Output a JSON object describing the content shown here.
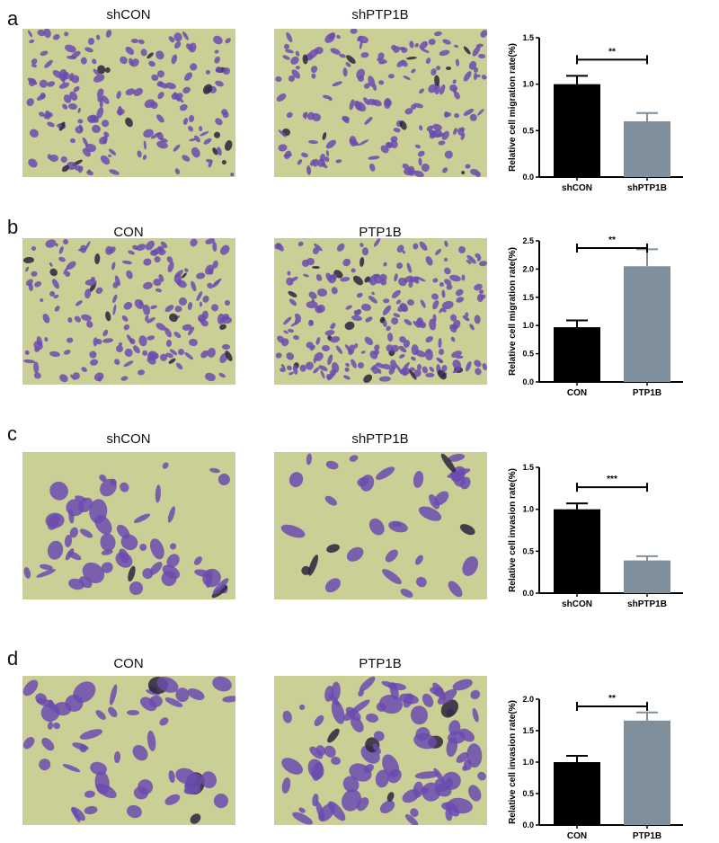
{
  "panels": [
    {
      "label": "a",
      "left_title": "shCON",
      "right_title": "shPTP1B",
      "density": "migration"
    },
    {
      "label": "b",
      "left_title": "CON",
      "right_title": "PTP1B",
      "density": "migration"
    },
    {
      "label": "c",
      "left_title": "shCON",
      "right_title": "shPTP1B",
      "density": "invasion"
    },
    {
      "label": "d",
      "left_title": "CON",
      "right_title": "PTP1B",
      "density": "invasion"
    }
  ],
  "colors": {
    "control": "#000000",
    "treatment": "#7f8f9c",
    "background": "#c9cf95",
    "stain": "#6b4bb0"
  },
  "chart_data": [
    {
      "type": "bar",
      "categories": [
        "shCON",
        "shPTP1B"
      ],
      "values": [
        1.0,
        0.6
      ],
      "errors": [
        0.09,
        0.09
      ],
      "ylabel": "Relative cell  migration  rate(%)",
      "ylim": [
        0,
        1.5
      ],
      "yticks": [
        "0.0",
        "0.5",
        "1.0",
        "1.5"
      ],
      "significance": "**"
    },
    {
      "type": "bar",
      "categories": [
        "CON",
        "PTP1B"
      ],
      "values": [
        0.97,
        2.05
      ],
      "errors": [
        0.12,
        0.3
      ],
      "ylabel": "Relative cell  migration  rate(%)",
      "ylim": [
        0,
        2.5
      ],
      "yticks": [
        "0.0",
        "0.5",
        "1.0",
        "1.5",
        "2.0",
        "2.5"
      ],
      "significance": "**"
    },
    {
      "type": "bar",
      "categories": [
        "shCON",
        "shPTP1B"
      ],
      "values": [
        1.0,
        0.39
      ],
      "errors": [
        0.07,
        0.05
      ],
      "ylabel": "Relative cell  invasion  rate(%)",
      "ylim": [
        0,
        1.5
      ],
      "yticks": [
        "0.0",
        "0.5",
        "1.0",
        "1.5"
      ],
      "significance": "***"
    },
    {
      "type": "bar",
      "categories": [
        "CON",
        "PTP1B"
      ],
      "values": [
        1.0,
        1.66
      ],
      "errors": [
        0.1,
        0.13
      ],
      "ylabel": "Relative cell  invasion  rate(%)",
      "ylim": [
        0,
        2.0
      ],
      "yticks": [
        "0.0",
        "0.5",
        "1.0",
        "1.5",
        "2.0"
      ],
      "significance": "**"
    }
  ]
}
